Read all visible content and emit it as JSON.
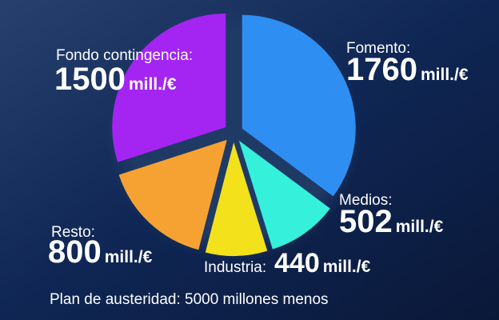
{
  "chart_data": {
    "type": "pie",
    "title": "Plan de austeridad: 5000 millones menos",
    "categories": [
      "Fomento:",
      "Medios:",
      "Industria:",
      "Resto:",
      "Fondo contingencia:"
    ],
    "values": [
      1760,
      502,
      440,
      800,
      1500
    ],
    "unit": "mill./€",
    "colors": [
      "#2f8ef2",
      "#35f0da",
      "#f3e11c",
      "#f6a233",
      "#a425f2"
    ]
  }
}
